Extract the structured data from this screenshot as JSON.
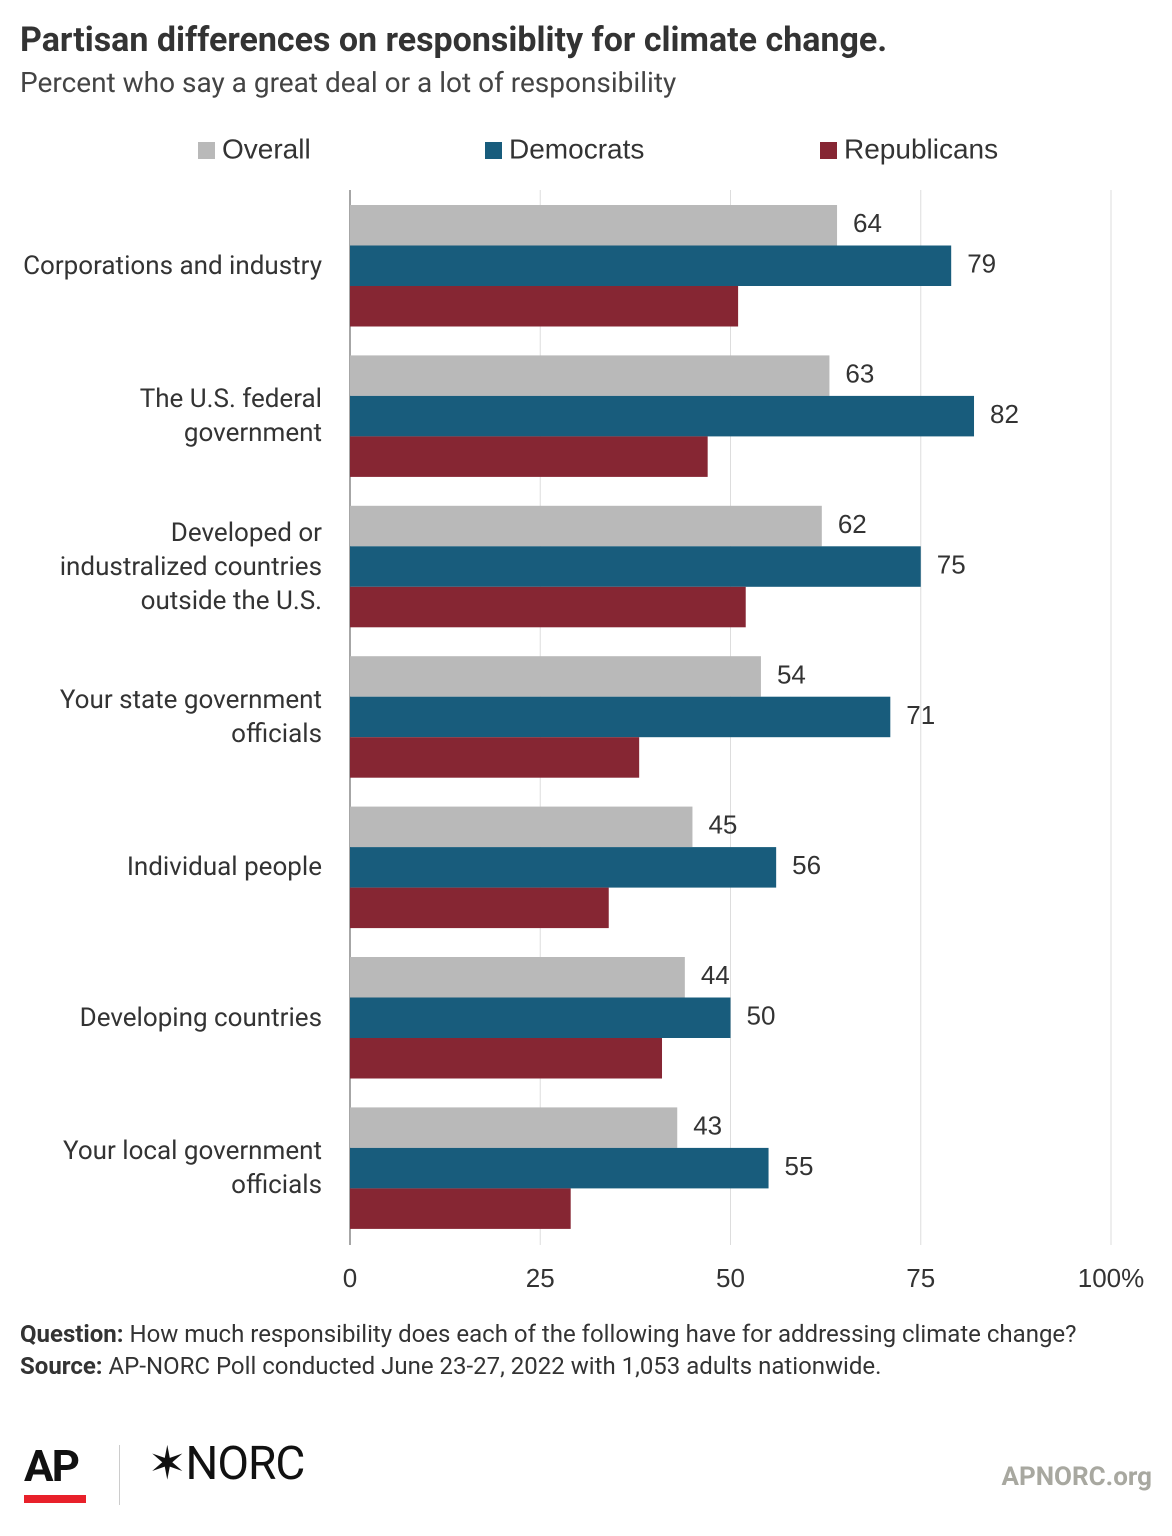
{
  "chart_data": {
    "type": "hbar",
    "title": "Partisan differences on responsiblity for climate change.",
    "subtitle": "Percent who say a great deal or a lot of responsibility",
    "categories": [
      "Corporations and industry",
      "The U.S. federal government",
      "Developed or industralized countries outside the U.S.",
      "Your state government officials",
      "Individual people",
      "Developing countries",
      "Your local government officials"
    ],
    "series": [
      {
        "name": "Overall",
        "color": "#b9b9b9",
        "show_labels": true,
        "values": [
          64,
          63,
          62,
          54,
          45,
          44,
          43
        ]
      },
      {
        "name": "Democrats",
        "color": "#185c7c",
        "show_labels": true,
        "values": [
          79,
          82,
          75,
          71,
          56,
          50,
          55
        ]
      },
      {
        "name": "Republicans",
        "color": "#862633",
        "show_labels": false,
        "values": [
          51,
          47,
          52,
          38,
          34,
          41,
          29
        ]
      }
    ],
    "xlim": [
      0,
      100
    ],
    "xticks": [
      0,
      25,
      50,
      75,
      {
        "value": 100,
        "label": "100%"
      }
    ],
    "grid": true,
    "legend": "top",
    "question_label": "Question:",
    "question": "How much responsibility does each of the following have for addressing climate change?",
    "source_label": "Source:",
    "source": "AP-NORC Poll conducted June 23-27, 2022 with 1,053 adults nationwide."
  },
  "footer": {
    "logo_ap": "AP",
    "logo_norc": "✶NORC",
    "site": "APNORC.org"
  }
}
